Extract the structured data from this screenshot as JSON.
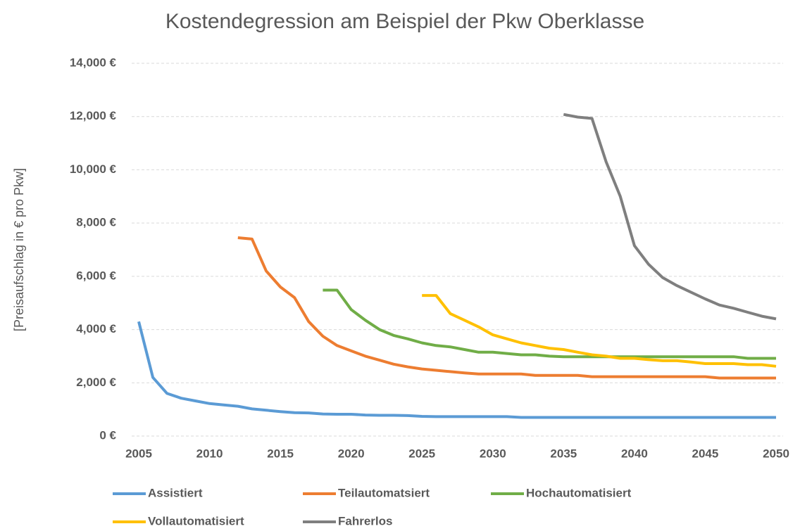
{
  "chart_data": {
    "type": "line",
    "title": "Kostendegression am Beispiel der Pkw Oberklasse",
    "y_label": "[Preisaufschlag in € pro Pkw]",
    "x": [
      2005,
      2006,
      2007,
      2008,
      2009,
      2010,
      2011,
      2012,
      2013,
      2014,
      2015,
      2016,
      2017,
      2018,
      2019,
      2020,
      2021,
      2022,
      2023,
      2024,
      2025,
      2026,
      2027,
      2028,
      2029,
      2030,
      2031,
      2032,
      2033,
      2034,
      2035,
      2036,
      2037,
      2038,
      2039,
      2040,
      2041,
      2042,
      2043,
      2044,
      2045,
      2046,
      2047,
      2048,
      2049,
      2050
    ],
    "xlim": [
      2005,
      2050
    ],
    "xticks": [
      2005,
      2010,
      2015,
      2020,
      2025,
      2030,
      2035,
      2040,
      2045,
      2050
    ],
    "ylim": [
      0,
      14000
    ],
    "yticks": [
      {
        "value": 0,
        "label": "0 €"
      },
      {
        "value": 2000,
        "label": "2,000 €"
      },
      {
        "value": 4000,
        "label": "4,000 €"
      },
      {
        "value": 6000,
        "label": "6,000 €"
      },
      {
        "value": 8000,
        "label": "8,000 €"
      },
      {
        "value": 10000,
        "label": "10,000 €"
      },
      {
        "value": 12000,
        "label": "12,000 €"
      },
      {
        "value": 14000,
        "label": "14,000 €"
      }
    ],
    "grid": true,
    "legend": "bottom",
    "series": [
      {
        "name": "Assistiert",
        "color": "#5b9bd5",
        "values": [
          4300,
          2200,
          1600,
          1420,
          1320,
          1220,
          1170,
          1120,
          1020,
          970,
          920,
          880,
          870,
          830,
          820,
          820,
          790,
          780,
          780,
          770,
          740,
          730,
          730,
          730,
          730,
          730,
          730,
          700,
          700,
          700,
          700,
          700,
          700,
          700,
          700,
          700,
          700,
          700,
          700,
          700,
          700,
          700,
          700,
          700,
          700,
          700
        ]
      },
      {
        "name": "Teilautomatsiert",
        "color": "#ed7d31",
        "values": [
          null,
          null,
          null,
          null,
          null,
          null,
          null,
          7450,
          7400,
          6200,
          5600,
          5200,
          4300,
          3750,
          3400,
          3200,
          3000,
          2850,
          2700,
          2600,
          2520,
          2470,
          2420,
          2370,
          2330,
          2330,
          2330,
          2330,
          2280,
          2280,
          2280,
          2280,
          2230,
          2230,
          2230,
          2230,
          2230,
          2230,
          2230,
          2230,
          2230,
          2180,
          2180,
          2180,
          2180,
          2180
        ]
      },
      {
        "name": "Hochautomatisiert",
        "color": "#70ad47",
        "values": [
          null,
          null,
          null,
          null,
          null,
          null,
          null,
          null,
          null,
          null,
          null,
          null,
          null,
          5480,
          5480,
          4750,
          4350,
          4000,
          3780,
          3650,
          3500,
          3400,
          3350,
          3250,
          3150,
          3150,
          3100,
          3050,
          3050,
          3000,
          2980,
          2980,
          2980,
          2980,
          2980,
          2980,
          2980,
          2980,
          2980,
          2980,
          2980,
          2980,
          2980,
          2920,
          2920,
          2920
        ]
      },
      {
        "name": "Vollautomatisiert",
        "color": "#ffc000",
        "values": [
          null,
          null,
          null,
          null,
          null,
          null,
          null,
          null,
          null,
          null,
          null,
          null,
          null,
          null,
          null,
          null,
          null,
          null,
          null,
          null,
          5280,
          5280,
          4600,
          4350,
          4100,
          3800,
          3650,
          3500,
          3400,
          3300,
          3250,
          3150,
          3050,
          3000,
          2920,
          2920,
          2870,
          2830,
          2830,
          2780,
          2720,
          2720,
          2720,
          2680,
          2680,
          2620
        ]
      },
      {
        "name": "Fahrerlos",
        "color": "#7f7f7f",
        "values": [
          null,
          null,
          null,
          null,
          null,
          null,
          null,
          null,
          null,
          null,
          null,
          null,
          null,
          null,
          null,
          null,
          null,
          null,
          null,
          null,
          null,
          null,
          null,
          null,
          null,
          null,
          null,
          null,
          null,
          null,
          12080,
          11980,
          11930,
          10300,
          9000,
          7150,
          6450,
          5950,
          5650,
          5400,
          5150,
          4920,
          4800,
          4650,
          4500,
          4400
        ]
      }
    ]
  }
}
